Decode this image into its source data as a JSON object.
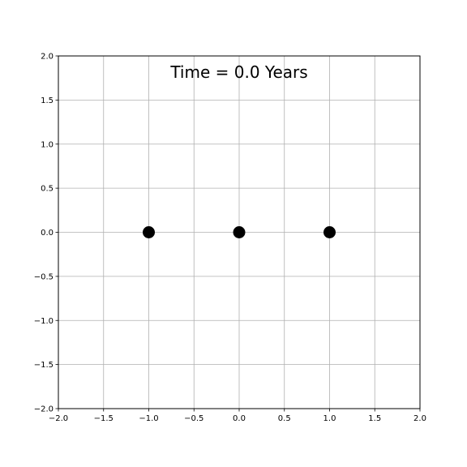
{
  "chart_data": {
    "type": "scatter",
    "title": "",
    "xlabel": "",
    "ylabel": "",
    "xlim": [
      -2.0,
      2.0
    ],
    "ylim": [
      -2.0,
      2.0
    ],
    "xticks": [
      -2.0,
      -1.5,
      -1.0,
      -0.5,
      0.0,
      0.5,
      1.0,
      1.5,
      2.0
    ],
    "yticks": [
      -2.0,
      -1.5,
      -1.0,
      -0.5,
      0.0,
      0.5,
      1.0,
      1.5,
      2.0
    ],
    "xtick_labels": [
      "−2.0",
      "−1.5",
      "−1.0",
      "−0.5",
      "0.0",
      "0.5",
      "1.0",
      "1.5",
      "2.0"
    ],
    "ytick_labels": [
      "−2.0",
      "−1.5",
      "−1.0",
      "−0.5",
      "0.0",
      "0.5",
      "1.0",
      "1.5",
      "2.0"
    ],
    "grid": true,
    "legend": "none",
    "annotation": "Time = 0.0 Years",
    "point_color": "#000000",
    "grid_color": "#b0b0b0",
    "points": [
      {
        "x": -1.0,
        "y": 0.0
      },
      {
        "x": 0.0,
        "y": 0.0
      },
      {
        "x": 1.0,
        "y": 0.0
      }
    ]
  }
}
